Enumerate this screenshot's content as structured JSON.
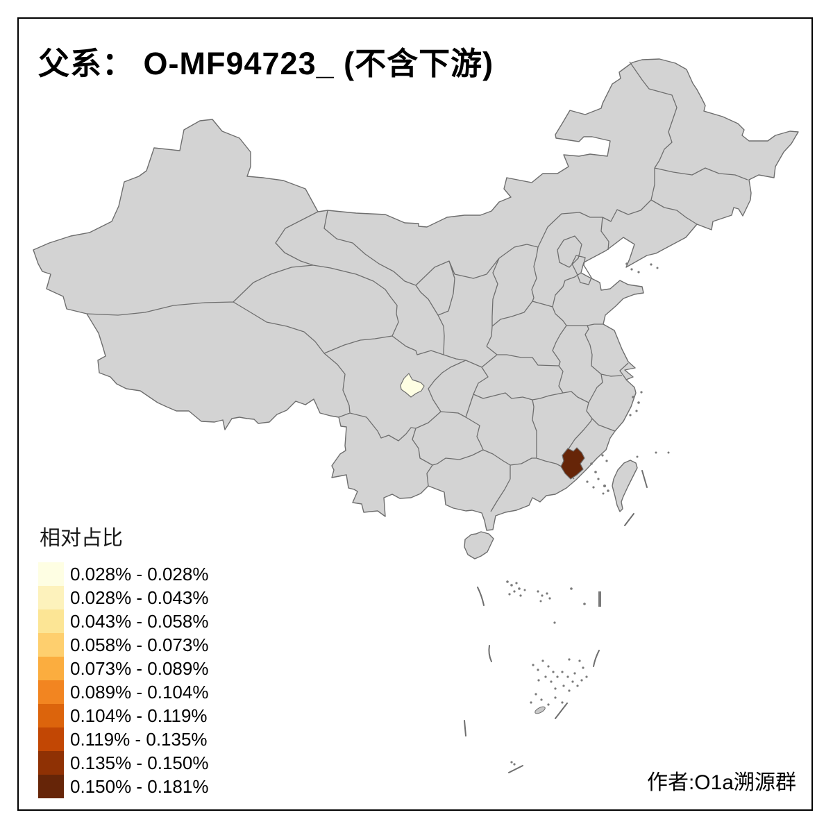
{
  "title": "父系： O-MF94723_ (不含下游)",
  "legend": {
    "title": "相对占比",
    "items": [
      {
        "label": "0.028% - 0.028%",
        "color": "#FEFEE3"
      },
      {
        "label": "0.028% - 0.043%",
        "color": "#FDF2BC"
      },
      {
        "label": "0.043% - 0.058%",
        "color": "#FCE595"
      },
      {
        "label": "0.058% - 0.073%",
        "color": "#FECF6E"
      },
      {
        "label": "0.073% - 0.089%",
        "color": "#FBAD3F"
      },
      {
        "label": "0.089% - 0.104%",
        "color": "#F28521"
      },
      {
        "label": "0.104% - 0.119%",
        "color": "#DC640C"
      },
      {
        "label": "0.119% - 0.135%",
        "color": "#C24704"
      },
      {
        "label": "0.135% - 0.150%",
        "color": "#8F3104"
      },
      {
        "label": "0.150% - 0.181%",
        "color": "#662508"
      }
    ]
  },
  "attribution": "作者:O1a溯源群",
  "map": {
    "background": "#FFFFFF",
    "frame_color": "#000000",
    "base_fill": "#D3D3D3",
    "border_color": "#6E6E6E",
    "highlights": [
      {
        "name": "sichuan-chengdu-area",
        "value_range": "0.028% - 0.028%",
        "color": "#FEFEE3"
      },
      {
        "name": "fujian-southwest-area",
        "value_range": "0.150% - 0.181%",
        "color": "#662508"
      }
    ]
  }
}
